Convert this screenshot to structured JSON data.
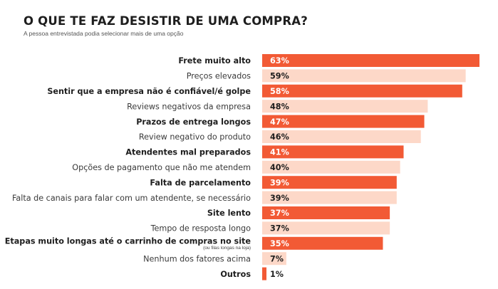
{
  "header": {
    "title": "O QUE TE FAZ DESISTIR DE UMA COMPRA?",
    "subtitle": "A pessoa entrevistada podia selecionar mais de uma opção"
  },
  "colors": {
    "strong": "#f25a35",
    "light": "#fdd8c8",
    "value_on_strong": "#ffffff",
    "value_on_light": "#1e1e1e"
  },
  "chart_data": {
    "type": "bar",
    "orientation": "horizontal",
    "title": "O QUE TE FAZ DESISTIR DE UMA COMPRA?",
    "subtitle": "A pessoa entrevistada podia selecionar mais de uma opção",
    "unit": "%",
    "xlim": [
      0,
      63
    ],
    "categories": [
      "Frete muito alto",
      "Preços elevados",
      "Sentir que a empresa não é confiável/é golpe",
      "Reviews negativos da empresa",
      "Prazos de entrega longos",
      "Review negativo do produto",
      "Atendentes mal preparados",
      "Opções de pagamento que não me atendem",
      "Falta de parcelamento",
      "Falta de canais para falar com um atendente, se necessário",
      "Site lento",
      "Tempo de resposta longo",
      "Etapas muito longas até o carrinho de compras no site",
      "Nenhum dos fatores acima",
      "Outros"
    ],
    "values": [
      63,
      59,
      58,
      48,
      47,
      46,
      41,
      40,
      39,
      39,
      37,
      37,
      35,
      7,
      1
    ],
    "value_labels": [
      "63%",
      "59%",
      "58%",
      "48%",
      "47%",
      "46%",
      "41%",
      "40%",
      "39%",
      "39%",
      "37%",
      "37%",
      "35%",
      "7%",
      "1%"
    ],
    "style": [
      "strong",
      "light",
      "strong",
      "light",
      "strong",
      "light",
      "strong",
      "light",
      "strong",
      "light",
      "strong",
      "light",
      "strong",
      "light",
      "strong"
    ],
    "notes": [
      "",
      "",
      "",
      "",
      "",
      "",
      "",
      "",
      "",
      "",
      "",
      "",
      "(ou filas longas na loja)",
      "",
      ""
    ]
  }
}
